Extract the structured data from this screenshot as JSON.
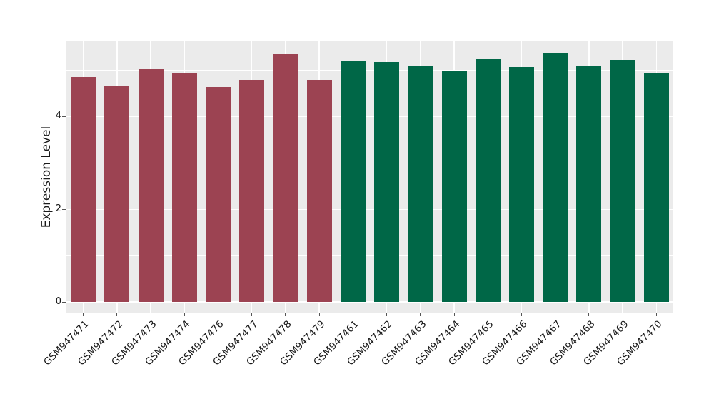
{
  "figure": {
    "background": "#ffffff",
    "plot_background": "#ebebeb",
    "grid_color": "#ffffff",
    "tick_color": "#555555",
    "text_color": "#1a1a1a"
  },
  "chart_data": {
    "type": "bar",
    "title": "",
    "xlabel": "",
    "ylabel": "Expression Level",
    "categories": [
      "GSM947471",
      "GSM947472",
      "GSM947473",
      "GSM947474",
      "GSM947476",
      "GSM947477",
      "GSM947478",
      "GSM947479",
      "GSM947461",
      "GSM947462",
      "GSM947463",
      "GSM947464",
      "GSM947465",
      "GSM947466",
      "GSM947467",
      "GSM947468",
      "GSM947469",
      "GSM947470"
    ],
    "values": [
      4.86,
      4.67,
      5.02,
      4.95,
      4.64,
      4.79,
      5.36,
      4.8,
      5.19,
      5.18,
      5.09,
      4.99,
      5.25,
      5.07,
      5.38,
      5.08,
      5.22,
      4.95
    ],
    "bar_colors": [
      "#9c4352",
      "#9c4352",
      "#9c4352",
      "#9c4352",
      "#9c4352",
      "#9c4352",
      "#9c4352",
      "#9c4352",
      "#006747",
      "#006747",
      "#006747",
      "#006747",
      "#006747",
      "#006747",
      "#006747",
      "#006747",
      "#006747",
      "#006747"
    ],
    "group_colors": {
      "left_group": "#9c4352",
      "right_group": "#006747"
    },
    "ylim": [
      -0.23,
      5.64
    ],
    "yticks": [
      0,
      2,
      4
    ],
    "ytick_labels": [
      "0",
      "2",
      "4"
    ],
    "gridlines_y": [
      0,
      1,
      2,
      3,
      4,
      5
    ],
    "grid": true,
    "legend": "none",
    "x_label_rotation_deg": 45
  }
}
